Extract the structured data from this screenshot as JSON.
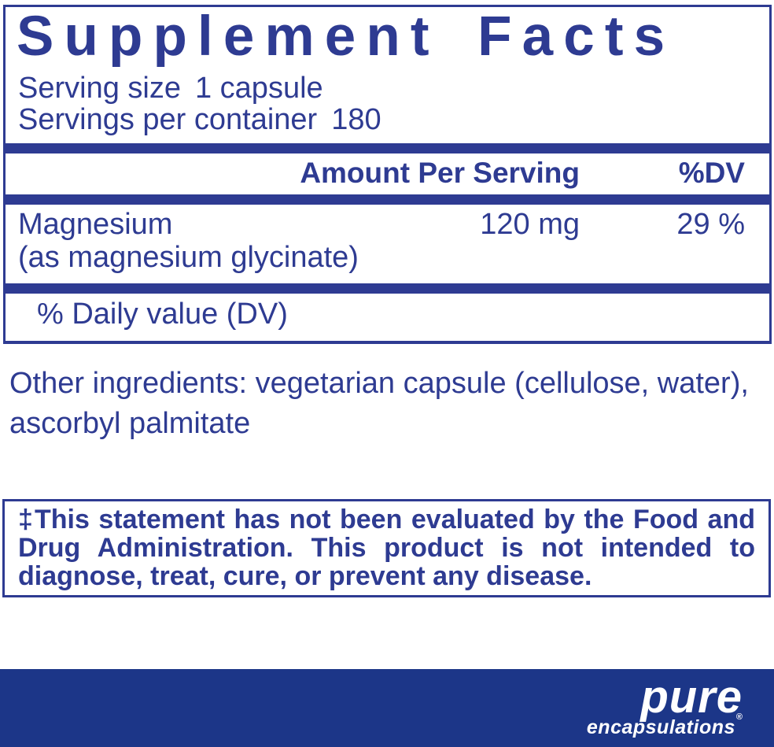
{
  "colors": {
    "navy": "#2e3b92",
    "footer": "#1c3688",
    "paper": "#ffffff"
  },
  "panel": {
    "title": "Supplement Facts",
    "serving_size_label": "Serving size",
    "serving_size_value": "1 capsule",
    "servings_per_container_label": "Servings per container",
    "servings_per_container_value": "180",
    "columns": {
      "amount_header": "Amount Per Serving",
      "dv_header": "%DV"
    },
    "rows": [
      {
        "name": "Magnesium",
        "detail": "(as magnesium glycinate)",
        "amount": "120 mg",
        "dv": "29 %"
      }
    ],
    "footnote": "% Daily value (DV)"
  },
  "other_ingredients": {
    "line1": "Other ingredients: vegetarian capsule (cellulose, water),",
    "line2": "ascorbyl palmitate"
  },
  "disclaimer": {
    "lines": [
      "‡This statement has not been evaluated by the Food and",
      "Drug Administration. This product is not intended to",
      "diagnose, treat, cure, or prevent any disease."
    ]
  },
  "footer": {
    "brand": "pure",
    "brand_sub": "encapsulations",
    "registered_mark": "®"
  }
}
